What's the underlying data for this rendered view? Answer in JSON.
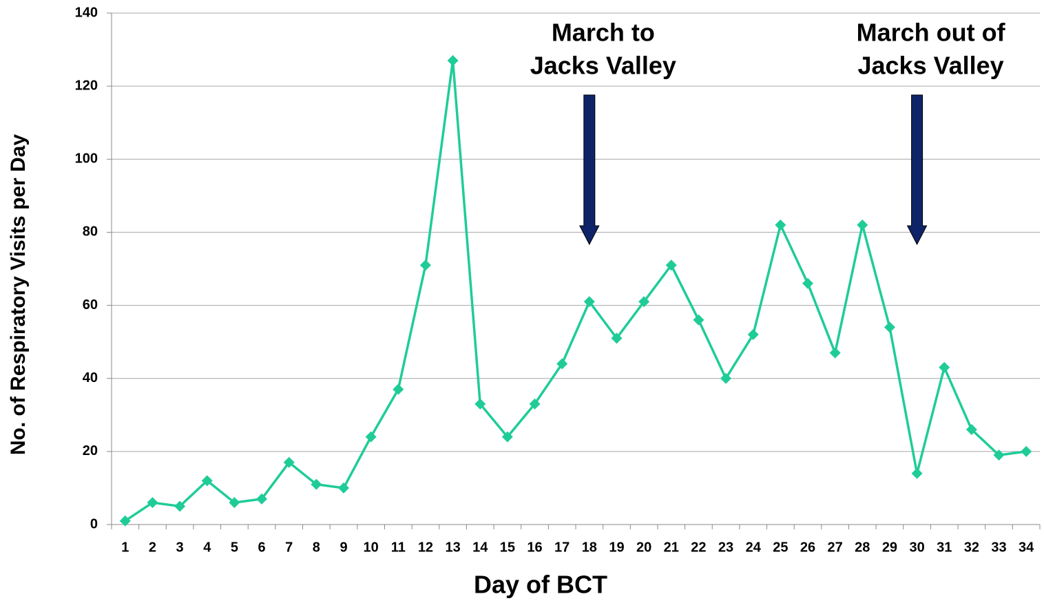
{
  "chart_data": {
    "type": "line",
    "x_label": "Day of BCT",
    "y_label": "No. of Respiratory Visits per Day",
    "categories": [
      "1",
      "2",
      "3",
      "4",
      "5",
      "6",
      "7",
      "8",
      "9",
      "10",
      "11",
      "12",
      "13",
      "14",
      "15",
      "16",
      "17",
      "18",
      "19",
      "20",
      "21",
      "22",
      "23",
      "24",
      "25",
      "26",
      "27",
      "28",
      "29",
      "30",
      "31",
      "32",
      "33",
      "34"
    ],
    "series": [
      {
        "color": "#1fcc98",
        "marker": "diamond",
        "values": [
          1,
          6,
          5,
          12,
          6,
          7,
          17,
          11,
          10,
          24,
          37,
          71,
          127,
          33,
          24,
          33,
          44,
          61,
          51,
          61,
          71,
          56,
          40,
          52,
          82,
          66,
          47,
          82,
          54,
          14,
          43,
          26,
          19,
          20
        ]
      }
    ],
    "ylim": [
      0,
      140
    ],
    "yticks": [
      0,
      20,
      40,
      60,
      80,
      100,
      120,
      140
    ],
    "grid": true,
    "annotations": [
      {
        "lines": [
          "March to",
          "Jacks Valley"
        ],
        "at": "18",
        "arrow_color": "#0f2468"
      },
      {
        "lines": [
          "March out of",
          "Jacks Valley"
        ],
        "at": "30",
        "arrow_color": "#0f2468"
      }
    ]
  }
}
